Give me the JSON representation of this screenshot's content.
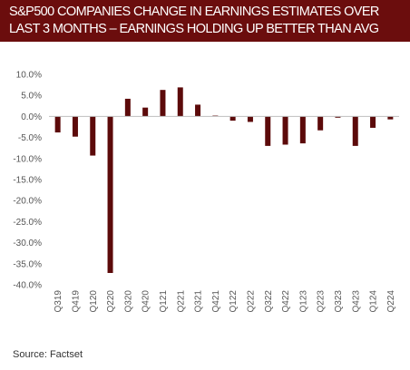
{
  "header": {
    "title_line1": "S&P500 COMPANIES CHANGE IN EARNINGS ESTIMATES  OVER",
    "title_line2": "LAST 3 MONTHS – EARNINGS HOLDING UP BETTER THAN AVG"
  },
  "source": "Source:  Factset",
  "colors": {
    "banner": "#6b0d0d",
    "bar": "#5c0a0a",
    "axis": "#bfbfbf"
  },
  "chart_data": {
    "type": "bar",
    "title": "S&P500 COMPANIES CHANGE IN EARNINGS ESTIMATES  OVER LAST 3 MONTHS – EARNINGS HOLDING UP BETTER THAN AVG",
    "xlabel": "",
    "ylabel": "",
    "ylim": [
      -40,
      10
    ],
    "yticks": [
      10,
      5,
      0,
      -5,
      -10,
      -15,
      -20,
      -25,
      -30,
      -35,
      -40
    ],
    "ytick_labels": [
      "10.0%",
      "5.0%",
      "0.0%",
      "-5.0%",
      "-10.0%",
      "-15.0%",
      "-20.0%",
      "-25.0%",
      "-30.0%",
      "-35.0%",
      "-40.0%"
    ],
    "grid": false,
    "legend": "none",
    "categories": [
      "Q319",
      "Q419",
      "Q120",
      "Q220",
      "Q320",
      "Q420",
      "Q121",
      "Q221",
      "Q321",
      "Q421",
      "Q122",
      "Q222",
      "Q322",
      "Q422",
      "Q123",
      "Q223",
      "Q323",
      "Q423",
      "Q124",
      "Q224"
    ],
    "values": [
      -3.8,
      -4.8,
      -9.3,
      -37.2,
      4.2,
      2.1,
      6.3,
      6.9,
      2.8,
      0.2,
      -1.0,
      -1.3,
      -7.0,
      -6.7,
      -6.4,
      -3.3,
      -0.3,
      -7.0,
      -2.7,
      -0.7
    ]
  }
}
